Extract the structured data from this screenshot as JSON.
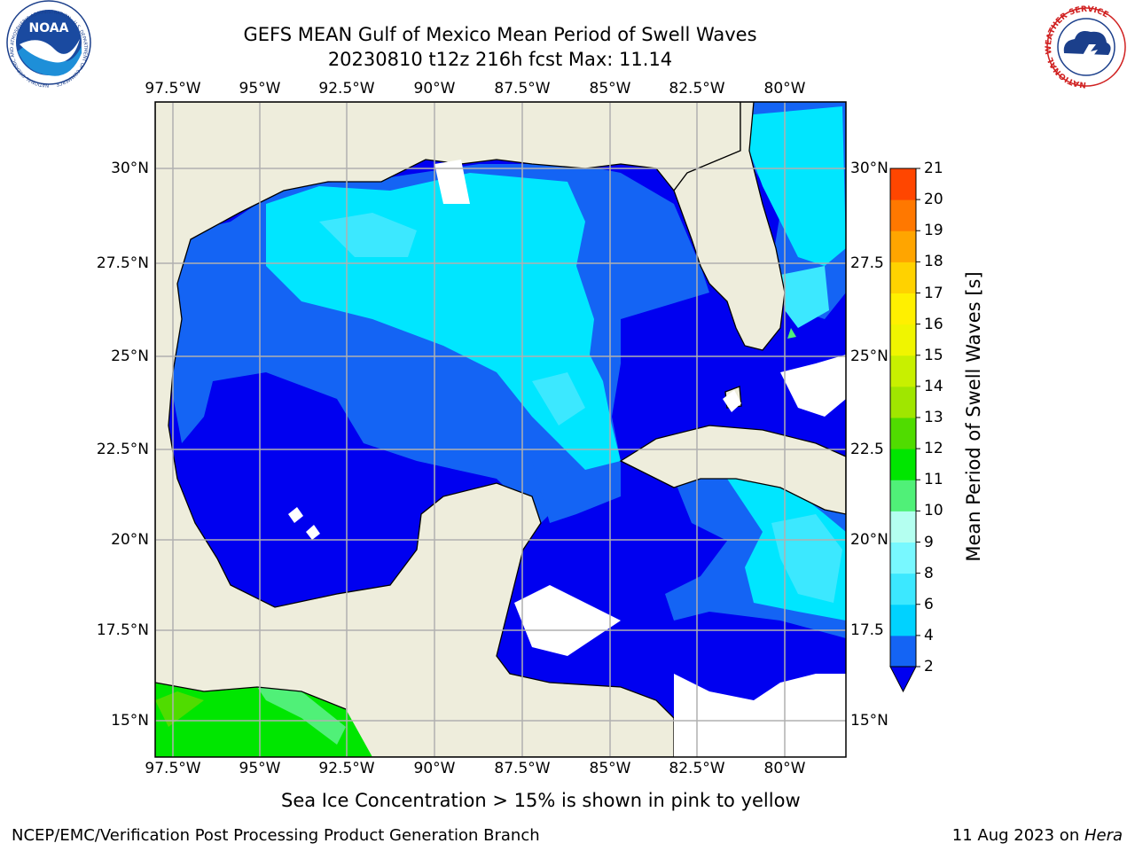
{
  "title": {
    "line1": "GEFS MEAN Gulf of Mexico Mean Period of Swell Waves",
    "line2": "20230810 t12z 216h fcst   Max: 11.14"
  },
  "logos": {
    "noaa": {
      "text": "NOAA",
      "ring_text": "NATIONAL OCEANIC AND ATMOSPHERIC ADMINISTRATION · U.S. DEPARTMENT OF COMMERCE"
    },
    "nws": {
      "ring_text": "NATIONAL WEATHER SERVICE"
    }
  },
  "map": {
    "lon_ticks": [
      "97.5°W",
      "95°W",
      "92.5°W",
      "90°W",
      "87.5°W",
      "85°W",
      "82.5°W",
      "80°W"
    ],
    "lat_ticks_left": [
      "30°N",
      "27.5°N",
      "25°N",
      "22.5°N",
      "20°N",
      "17.5°N",
      "15°N"
    ],
    "lat_ticks_right": [
      "30°N",
      "27.5",
      "25°N",
      "22.5",
      "20°N",
      "17.5",
      "15°N"
    ],
    "land_color": "#eeeddc",
    "grid": true
  },
  "colorbar": {
    "label": "Mean Period of Swell Waves [s]",
    "ticks": [
      "2",
      "4",
      "6",
      "8",
      "9",
      "10",
      "11",
      "12",
      "13",
      "14",
      "15",
      "16",
      "17",
      "18",
      "19",
      "20",
      "21"
    ],
    "colors": [
      "#1464f4",
      "#00d2ff",
      "#3ce8ff",
      "#78f8ff",
      "#b4fff0",
      "#50f078",
      "#00e600",
      "#50dc00",
      "#a0e600",
      "#c8f000",
      "#f0f500",
      "#fff000",
      "#ffd200",
      "#ffa500",
      "#ff7800",
      "#ff4600",
      "#ff0000"
    ],
    "extend_color": "#0000f0"
  },
  "note": "Sea Ice Concentration > 15% is shown in pink to yellow",
  "footer": {
    "left": "NCEP/EMC/Verification Post Processing Product Generation Branch",
    "right_prefix": "11 Aug 2023 on ",
    "right_italic": "Hera"
  }
}
